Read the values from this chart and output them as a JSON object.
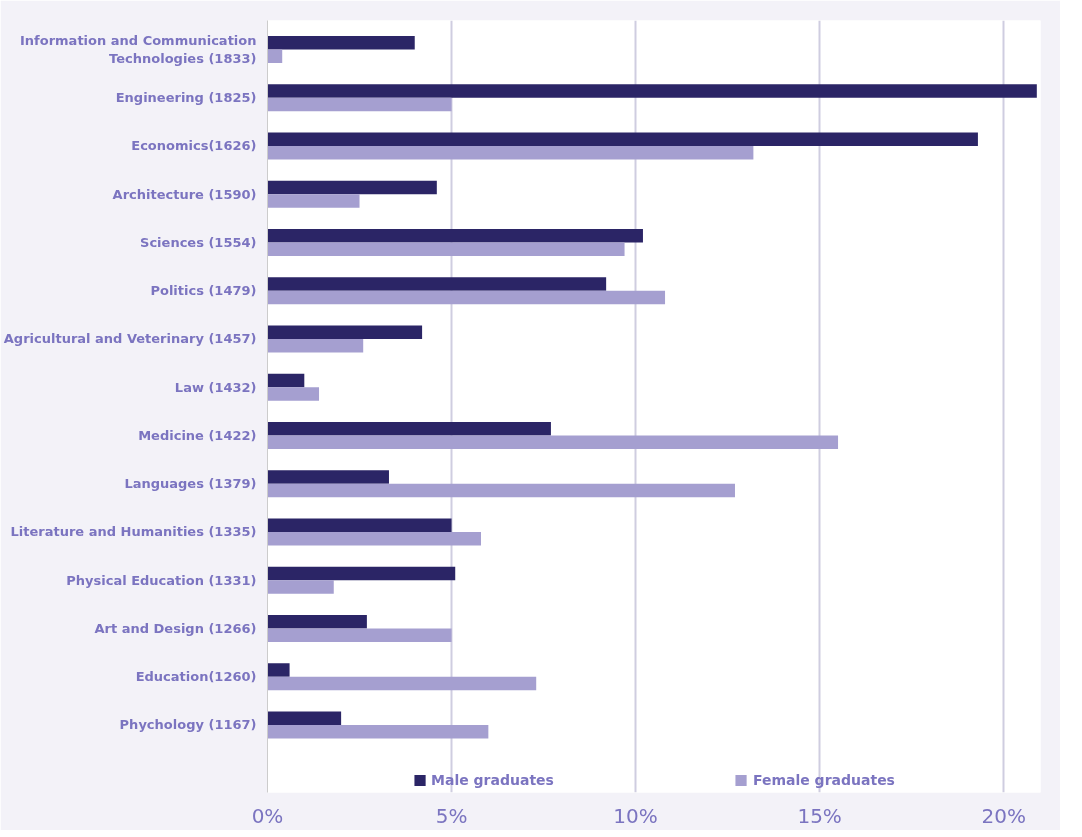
{
  "chart_data": {
    "type": "bar",
    "orientation": "horizontal",
    "categories": [
      "Information and Communication Technologies (1833)",
      "Engineering (1825)",
      "Economics(1626)",
      "Architecture (1590)",
      "Sciences (1554)",
      "Politics (1479)",
      "Agricultural and Veterinary (1457)",
      "Law (1432)",
      "Medicine (1422)",
      "Languages (1379)",
      "Literature and Humanities (1335)",
      "Physical Education (1331)",
      "Art and Design (1266)",
      "Education(1260)",
      "Phychology (1167)"
    ],
    "series": [
      {
        "name": "Male graduates",
        "color": "#2b2566",
        "values": [
          4.0,
          20.9,
          19.3,
          4.6,
          10.2,
          9.2,
          4.2,
          1.0,
          7.7,
          3.3,
          5.0,
          5.1,
          2.7,
          0.6,
          2.0
        ]
      },
      {
        "name": "Female graduates",
        "color": "#a59fd0",
        "values": [
          0.4,
          5.0,
          13.2,
          2.5,
          9.7,
          10.8,
          2.6,
          1.4,
          15.5,
          12.7,
          5.8,
          1.8,
          5.0,
          7.3,
          6.0
        ]
      }
    ],
    "xlim": [
      0,
      21
    ],
    "xticks": [
      {
        "value": 0,
        "label": "0%"
      },
      {
        "value": 5,
        "label": "5%"
      },
      {
        "value": 10,
        "label": "10%"
      },
      {
        "value": 15,
        "label": "15%"
      },
      {
        "value": 20,
        "label": "20%"
      }
    ],
    "grid": "x",
    "legend": "bottom"
  }
}
